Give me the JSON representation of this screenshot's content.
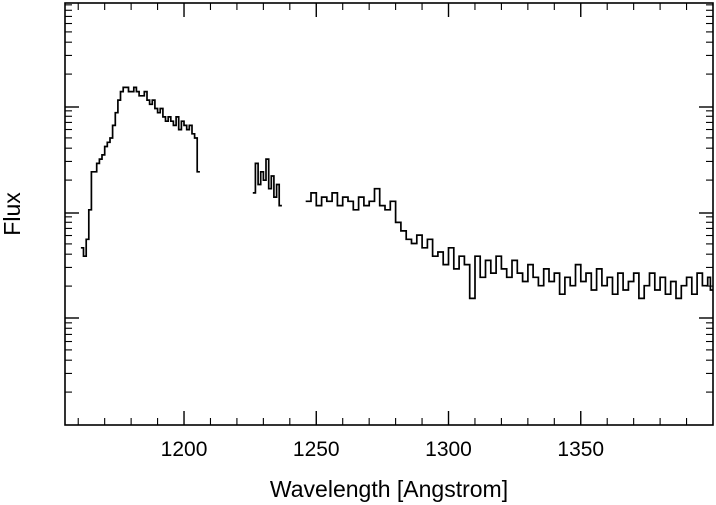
{
  "chart_data": {
    "type": "line",
    "title": "",
    "xlabel": "Wavelength [Angstrom]",
    "ylabel": "Flux",
    "xlim": [
      1155,
      1400
    ],
    "ylim": [
      0,
      1
    ],
    "y_scale": "log",
    "y_tick_labels": false,
    "grid": false,
    "legend": "none",
    "x_ticks": [
      1200,
      1250,
      1300,
      1350
    ],
    "x_tick_labels": [
      "1200",
      "1250",
      "1300",
      "1350"
    ],
    "line_color": "#000000",
    "series": [
      {
        "segments": [
          {
            "x": [
              1161,
              1162,
              1163,
              1164,
              1165,
              1166,
              1167,
              1168,
              1169,
              1170,
              1171,
              1172,
              1173,
              1174,
              1175,
              1176,
              1177,
              1178,
              1179,
              1180,
              1181,
              1182,
              1183,
              1184,
              1185,
              1186,
              1187,
              1188,
              1189,
              1190,
              1191,
              1192,
              1193,
              1194,
              1195,
              1196,
              1197,
              1198,
              1199,
              1200,
              1201,
              1202,
              1203,
              1204,
              1205
            ],
            "y": [
              0.42,
              0.4,
              0.44,
              0.51,
              0.6,
              0.6,
              0.62,
              0.63,
              0.64,
              0.66,
              0.67,
              0.68,
              0.71,
              0.74,
              0.77,
              0.79,
              0.8,
              0.8,
              0.79,
              0.79,
              0.8,
              0.79,
              0.78,
              0.78,
              0.79,
              0.77,
              0.76,
              0.77,
              0.75,
              0.74,
              0.75,
              0.73,
              0.72,
              0.73,
              0.72,
              0.71,
              0.73,
              0.7,
              0.72,
              0.71,
              0.7,
              0.71,
              0.69,
              0.68,
              0.6
            ]
          },
          {
            "x": [
              1226,
              1227,
              1228,
              1229,
              1230,
              1231,
              1232,
              1233,
              1234,
              1235,
              1236
            ],
            "y": [
              0.55,
              0.62,
              0.57,
              0.6,
              0.58,
              0.63,
              0.56,
              0.59,
              0.54,
              0.57,
              0.52
            ]
          },
          {
            "x": [
              1246,
              1248,
              1250,
              1252,
              1254,
              1256,
              1258,
              1260,
              1262,
              1264,
              1266,
              1268,
              1270,
              1272,
              1274,
              1276,
              1278,
              1280,
              1282,
              1284,
              1286,
              1288,
              1290,
              1292,
              1294,
              1296,
              1298,
              1300,
              1302,
              1304,
              1306,
              1308,
              1310,
              1312,
              1314,
              1316,
              1318,
              1320,
              1322,
              1324,
              1326,
              1328,
              1330,
              1332,
              1334,
              1336,
              1338,
              1340,
              1342,
              1344,
              1346,
              1348,
              1350,
              1352,
              1354,
              1356,
              1358,
              1360,
              1362,
              1364,
              1366,
              1368,
              1370,
              1372,
              1374,
              1376,
              1378,
              1380,
              1382,
              1384,
              1386,
              1388,
              1390,
              1392,
              1394,
              1396,
              1398,
              1399
            ],
            "y": [
              0.53,
              0.55,
              0.52,
              0.54,
              0.53,
              0.55,
              0.52,
              0.54,
              0.53,
              0.51,
              0.54,
              0.52,
              0.53,
              0.56,
              0.52,
              0.51,
              0.53,
              0.48,
              0.46,
              0.44,
              0.43,
              0.45,
              0.42,
              0.44,
              0.4,
              0.41,
              0.38,
              0.42,
              0.37,
              0.4,
              0.38,
              0.3,
              0.4,
              0.35,
              0.39,
              0.36,
              0.4,
              0.37,
              0.35,
              0.39,
              0.36,
              0.34,
              0.38,
              0.35,
              0.33,
              0.37,
              0.34,
              0.36,
              0.31,
              0.35,
              0.33,
              0.38,
              0.34,
              0.36,
              0.32,
              0.37,
              0.33,
              0.35,
              0.31,
              0.36,
              0.32,
              0.34,
              0.36,
              0.3,
              0.33,
              0.36,
              0.32,
              0.35,
              0.31,
              0.34,
              0.3,
              0.33,
              0.35,
              0.31,
              0.36,
              0.33,
              0.35,
              0.32
            ]
          }
        ]
      }
    ]
  }
}
